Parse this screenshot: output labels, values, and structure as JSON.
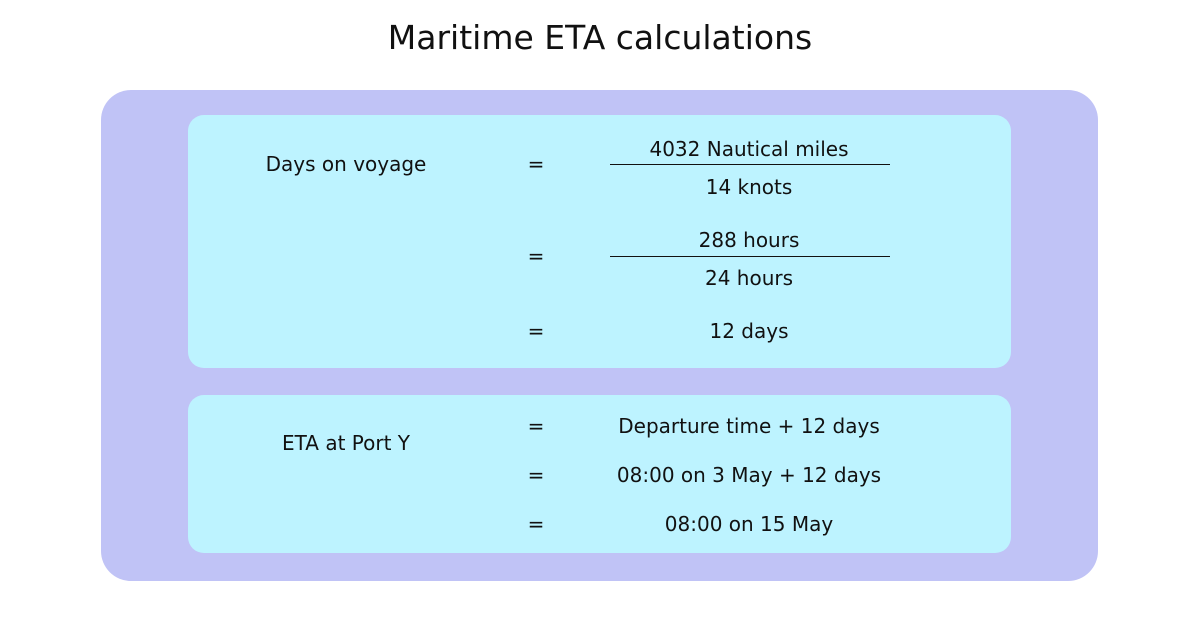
{
  "title": "Maritime ETA calculations",
  "colors": {
    "outer_panel": "#c0c3f6",
    "card": "#bdf3ff",
    "text": "#111111"
  },
  "voyage": {
    "label": "Days on voyage",
    "rows": [
      {
        "equals": "=",
        "numerator": "4032 Nautical miles",
        "denominator": "14 knots"
      },
      {
        "equals": "=",
        "numerator": "288 hours",
        "denominator": "24 hours"
      },
      {
        "equals": "=",
        "result": "12 days"
      }
    ]
  },
  "eta": {
    "label": "ETA at Port Y",
    "rows": [
      {
        "equals": "=",
        "value": "Departure time + 12 days"
      },
      {
        "equals": "=",
        "value": "08:00 on 3 May + 12 days"
      },
      {
        "equals": "=",
        "value": "08:00 on 15 May"
      }
    ]
  }
}
